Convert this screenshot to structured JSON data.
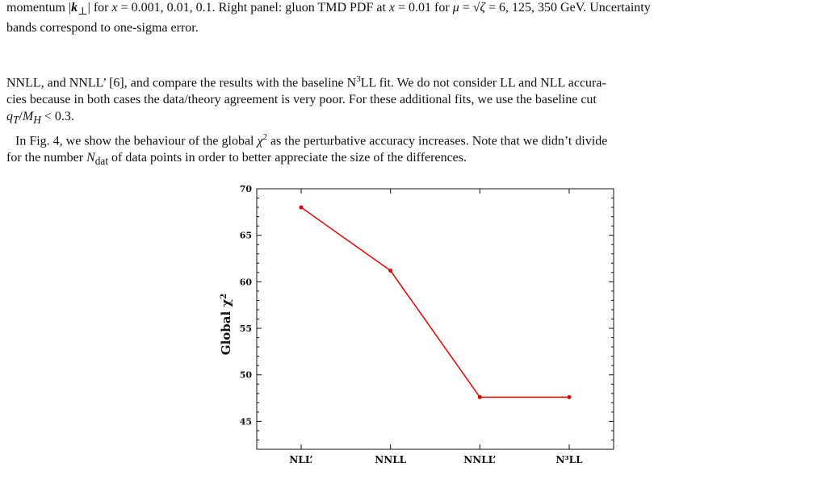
{
  "caption_tail": {
    "line1": "momentum |k⊥| for x = 0.001, 0.01, 0.1. Right panel: gluon TMD PDF at x = 0.01 for μ = √ζ = 6, 125, 350 GeV. Uncertainty",
    "line2": "bands correspond to one-sigma error."
  },
  "body": {
    "p1_line1": "NNLL, and NNLL’ [6], and compare the results with the baseline N³LL fit. We do not consider LL and NLL accura-",
    "p1_line2": "cies because in both cases the data/theory agreement is very poor. For these additional fits, we use the baseline cut",
    "p1_line3": "q_T/M_H < 0.3.",
    "p2_line1": "In Fig. 4, we show the behaviour of the global χ² as the perturbative accuracy increases. Note that we didn’t divide",
    "p2_line2": "for the number N_dat of data points in order to better appreciate the size of the differences."
  },
  "chart_data": {
    "type": "line",
    "categories": [
      "NLL’",
      "NNLL",
      "NNLL’",
      "N³LL"
    ],
    "series": [
      {
        "values": [
          68.0,
          61.2,
          47.6,
          47.6
        ],
        "color": "#e00000"
      }
    ],
    "ylabel": "Global χ²",
    "xlabel": "",
    "ylim": [
      42,
      70
    ],
    "yticks": [
      45,
      50,
      55,
      60,
      65,
      70
    ],
    "grid": false
  }
}
